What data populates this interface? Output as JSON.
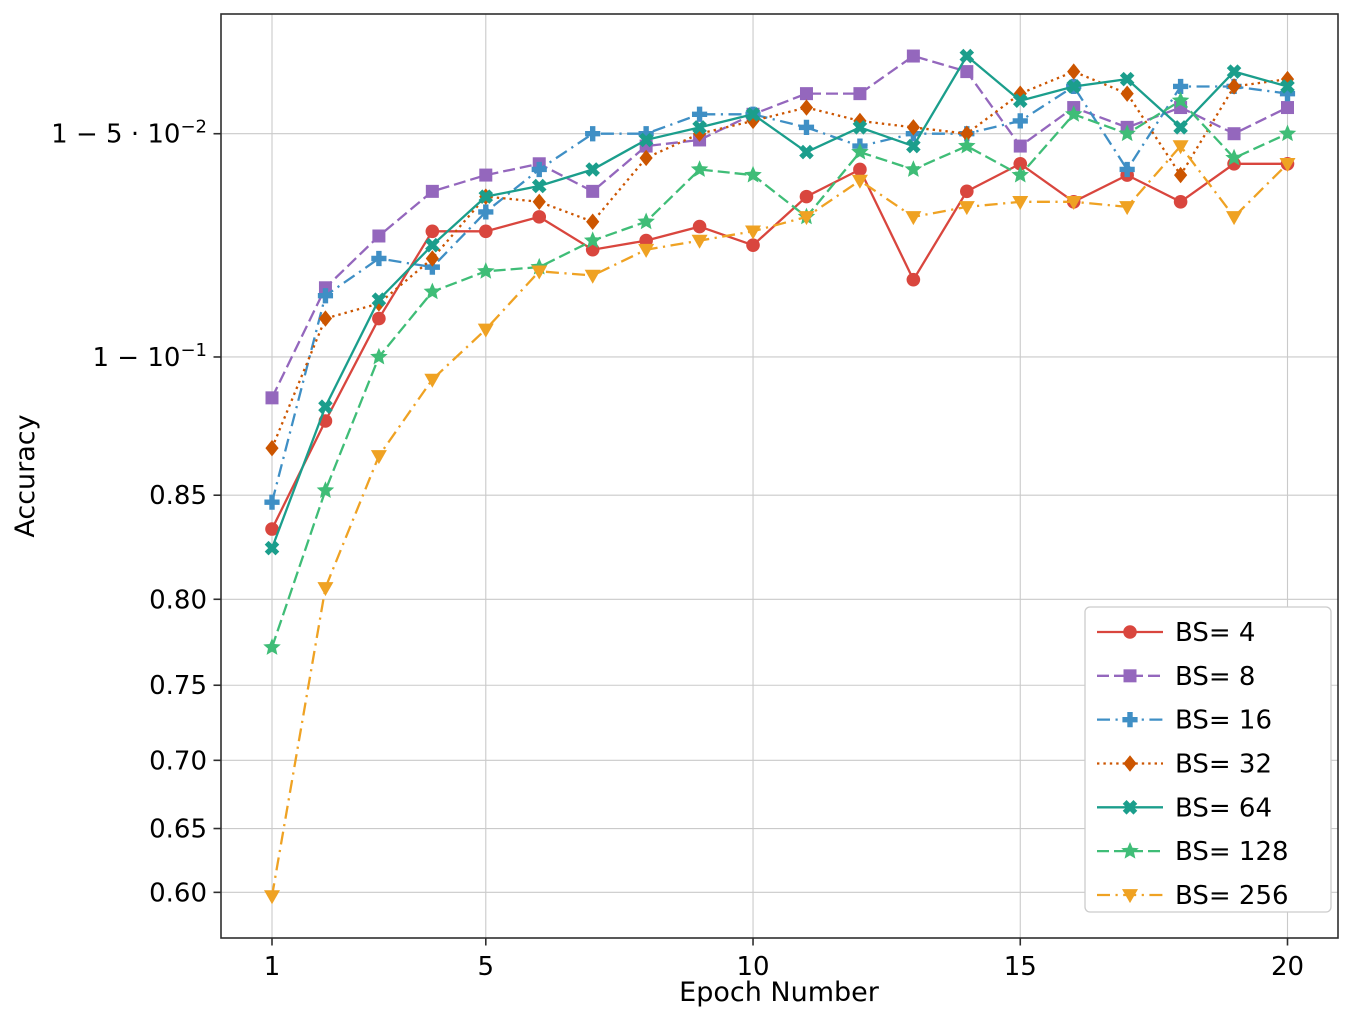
{
  "chart_data": {
    "type": "line",
    "title": "",
    "xlabel": "Epoch Number",
    "ylabel": "Accuracy",
    "yscale": "logit",
    "grid": true,
    "x": [
      1,
      2,
      3,
      4,
      5,
      6,
      7,
      8,
      9,
      10,
      11,
      12,
      13,
      14,
      15,
      16,
      17,
      18,
      19,
      20
    ],
    "xticks": {
      "values": [
        1,
        5,
        10,
        15,
        20
      ],
      "labels": [
        "1",
        "5",
        "10",
        "15",
        "20"
      ]
    },
    "yticks": [
      {
        "value": 0.95,
        "label": "1 − 5 · 10",
        "sup": "−2"
      },
      {
        "value": 0.9,
        "label": "1 − 10",
        "sup": "−1"
      },
      {
        "value": 0.85,
        "label": "0.85"
      },
      {
        "value": 0.8,
        "label": "0.80"
      },
      {
        "value": 0.75,
        "label": "0.75"
      },
      {
        "value": 0.7,
        "label": "0.70"
      },
      {
        "value": 0.65,
        "label": "0.65"
      },
      {
        "value": 0.6,
        "label": "0.60"
      }
    ],
    "legend_position": "lower right",
    "series": [
      {
        "name": "BS= 4",
        "color": "#d9463e",
        "linestyle": "solid",
        "marker": "circle",
        "values": [
          0.835,
          0.879,
          0.911,
          0.932,
          0.932,
          0.935,
          0.928,
          0.93,
          0.933,
          0.929,
          0.939,
          0.944,
          0.921,
          0.94,
          0.945,
          0.938,
          0.943,
          0.938,
          0.945,
          0.945
        ]
      },
      {
        "name": "BS= 8",
        "color": "#9467bd",
        "linestyle": "dashed",
        "marker": "square",
        "values": [
          0.887,
          0.919,
          0.931,
          0.94,
          0.943,
          0.945,
          0.94,
          0.948,
          0.949,
          0.953,
          0.956,
          0.956,
          0.961,
          0.959,
          0.948,
          0.954,
          0.951,
          0.954,
          0.95,
          0.954
        ]
      },
      {
        "name": "BS= 16",
        "color": "#3f8fc5",
        "linestyle": "dashdot",
        "marker": "plus",
        "values": [
          0.847,
          0.917,
          0.926,
          0.924,
          0.936,
          0.944,
          0.95,
          0.95,
          0.953,
          0.953,
          0.951,
          0.948,
          0.95,
          0.95,
          0.952,
          0.957,
          0.944,
          0.957,
          0.957,
          0.956
        ]
      },
      {
        "name": "BS= 32",
        "color": "#cc5500",
        "linestyle": "dotted",
        "marker": "diamond",
        "values": [
          0.869,
          0.911,
          0.915,
          0.926,
          0.939,
          0.938,
          0.934,
          0.946,
          0.95,
          0.952,
          0.954,
          0.952,
          0.951,
          0.95,
          0.956,
          0.959,
          0.956,
          0.943,
          0.957,
          0.958
        ]
      },
      {
        "name": "BS= 64",
        "color": "#1b9e8c",
        "linestyle": "solid",
        "marker": "x",
        "values": [
          0.826,
          0.884,
          0.916,
          0.929,
          0.939,
          0.941,
          0.944,
          0.949,
          0.951,
          0.953,
          0.947,
          0.951,
          0.948,
          0.961,
          0.955,
          0.957,
          0.958,
          0.951,
          0.959,
          0.957
        ]
      },
      {
        "name": "BS= 128",
        "color": "#3fbd77",
        "linestyle": "dashed",
        "marker": "star",
        "values": [
          0.773,
          0.852,
          0.9,
          0.918,
          0.923,
          0.924,
          0.93,
          0.934,
          0.944,
          0.943,
          0.935,
          0.947,
          0.944,
          0.948,
          0.943,
          0.953,
          0.95,
          0.955,
          0.946,
          0.95
        ]
      },
      {
        "name": "BS= 256",
        "color": "#efa223",
        "linestyle": "dashdot",
        "marker": "triangle-down",
        "values": [
          0.597,
          0.806,
          0.866,
          0.893,
          0.908,
          0.923,
          0.922,
          0.928,
          0.93,
          0.932,
          0.935,
          0.942,
          0.935,
          0.937,
          0.938,
          0.938,
          0.937,
          0.948,
          0.935,
          0.945
        ]
      }
    ]
  }
}
